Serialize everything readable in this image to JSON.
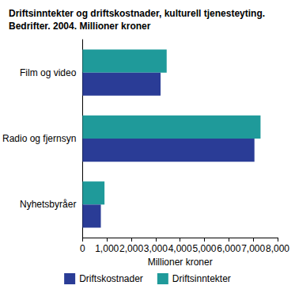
{
  "chart_data": {
    "type": "bar",
    "orientation": "horizontal",
    "title": "Driftsinntekter og driftskostnader, kulturell tjenesteyting. Bedrifter. 2004. Millioner kroner",
    "x_label": "Millioner kroner",
    "categories": [
      "Film og video",
      "Radio og fjernsyn",
      "Nyhetsbyråer"
    ],
    "series": [
      {
        "name": "Driftskostnader",
        "color": "#2a3c96",
        "values": [
          3200,
          7050,
          750
        ]
      },
      {
        "name": "Driftsinntekter",
        "color": "#1f9a9a",
        "values": [
          3450,
          7300,
          900
        ]
      }
    ],
    "xlim": [
      0,
      8000
    ],
    "xticks": [
      0,
      1000,
      2000,
      3000,
      4000,
      5000,
      6000,
      7000,
      8000
    ],
    "grid": false,
    "legend": "bottom"
  }
}
